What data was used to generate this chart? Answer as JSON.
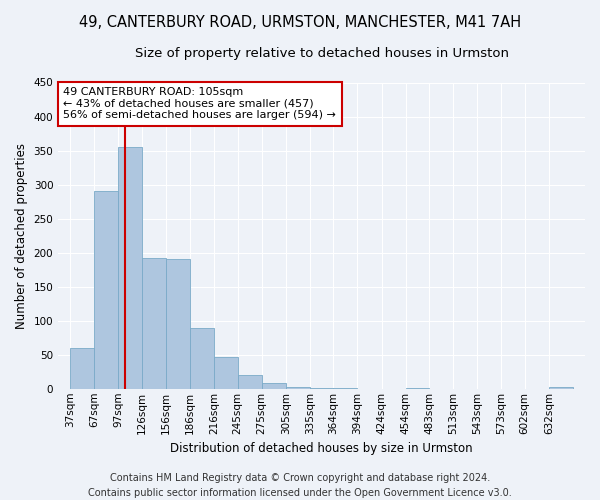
{
  "title": "49, CANTERBURY ROAD, URMSTON, MANCHESTER, M41 7AH",
  "subtitle": "Size of property relative to detached houses in Urmston",
  "xlabel": "Distribution of detached houses by size in Urmston",
  "ylabel": "Number of detached properties",
  "footer_line1": "Contains HM Land Registry data © Crown copyright and database right 2024.",
  "footer_line2": "Contains public sector information licensed under the Open Government Licence v3.0.",
  "bin_labels": [
    "37sqm",
    "67sqm",
    "97sqm",
    "126sqm",
    "156sqm",
    "186sqm",
    "216sqm",
    "245sqm",
    "275sqm",
    "305sqm",
    "335sqm",
    "364sqm",
    "394sqm",
    "424sqm",
    "454sqm",
    "483sqm",
    "513sqm",
    "543sqm",
    "573sqm",
    "602sqm",
    "632sqm"
  ],
  "bin_starts": [
    37,
    67,
    97,
    126,
    156,
    186,
    216,
    245,
    275,
    305,
    335,
    364,
    394,
    424,
    454,
    483,
    513,
    543,
    573,
    602,
    632
  ],
  "bar_values": [
    60,
    290,
    355,
    192,
    190,
    90,
    47,
    20,
    8,
    3,
    1,
    1,
    0,
    0,
    1,
    0,
    0,
    0,
    0,
    0,
    3
  ],
  "bar_color": "#aec6df",
  "bar_edge_color": "#7aaac8",
  "annotation_line1": "49 CANTERBURY ROAD: 105sqm",
  "annotation_line2": "← 43% of detached houses are smaller (457)",
  "annotation_line3": "56% of semi-detached houses are larger (594) →",
  "vline_x": 105,
  "vline_color": "#cc0000",
  "annotation_box_edge": "#cc0000",
  "ylim": [
    0,
    450
  ],
  "yticks": [
    0,
    50,
    100,
    150,
    200,
    250,
    300,
    350,
    400,
    450
  ],
  "background_color": "#eef2f8",
  "plot_bg_color": "#eef2f8",
  "grid_color": "#ffffff",
  "title_fontsize": 10.5,
  "subtitle_fontsize": 9.5,
  "axis_label_fontsize": 8.5,
  "tick_fontsize": 7.5,
  "annotation_fontsize": 8,
  "footer_fontsize": 7
}
